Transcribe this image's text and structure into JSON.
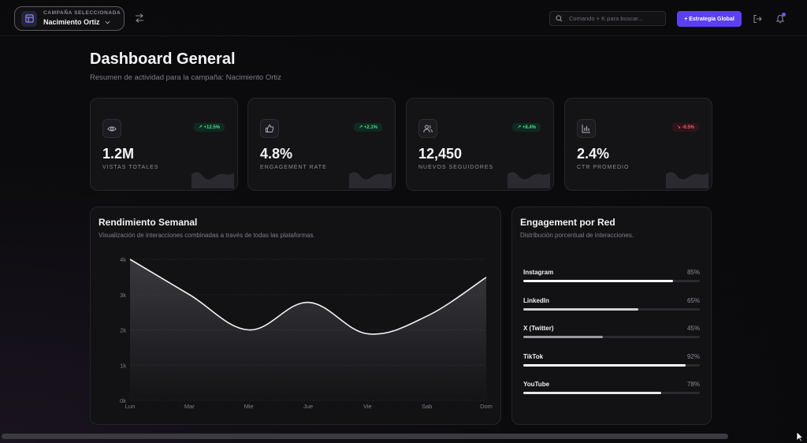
{
  "header": {
    "campaign_label": "CAMPAÑA SELECCIONADA",
    "campaign_name": "Nacimiento Ortiz",
    "search_placeholder": "Comando + K para buscar...",
    "strategy_button": "+ Estrategia Global"
  },
  "page": {
    "title": "Dashboard General",
    "subtitle": "Resumen de actividad para la campaña: Nacimiento Ortiz"
  },
  "stats": [
    {
      "icon": "eye-icon",
      "value": "1.2M",
      "label": "VISTAS TOTALES",
      "badge": "↗ +12.5%",
      "trend": "up"
    },
    {
      "icon": "thumbs-up-icon",
      "value": "4.8%",
      "label": "ENGAGEMENT RATE",
      "badge": "↗ +2.1%",
      "trend": "up"
    },
    {
      "icon": "users-icon",
      "value": "12,450",
      "label": "NUEVOS SEGUIDORES",
      "badge": "↗ +8.4%",
      "trend": "up"
    },
    {
      "icon": "bar-chart-icon",
      "value": "2.4%",
      "label": "CTR PROMEDIO",
      "badge": "↘ -0.5%",
      "trend": "down"
    }
  ],
  "weekly": {
    "title": "Rendimiento Semanal",
    "subtitle": "Visualización de interacciones combinadas a través de todas las plataformas."
  },
  "chart_data": {
    "type": "area",
    "categories": [
      "Lun",
      "Mar",
      "Mie",
      "Jue",
      "Vie",
      "Sab",
      "Dom"
    ],
    "values": [
      4000,
      3000,
      2000,
      2780,
      1890,
      2390,
      3490
    ],
    "yticks": [
      "0k",
      "1k",
      "2k",
      "3k",
      "4k"
    ],
    "ylim": [
      0,
      4000
    ],
    "grid": true
  },
  "engagement": {
    "title": "Engagement por Red",
    "subtitle": "Distribución porcentual de interacciones.",
    "networks": [
      {
        "name": "Instagram",
        "pct_label": "85%",
        "value": 85,
        "color": "#ffffff"
      },
      {
        "name": "LinkedIn",
        "pct_label": "65%",
        "value": 65,
        "color": "#cfcfd4"
      },
      {
        "name": "X (Twitter)",
        "pct_label": "45%",
        "value": 45,
        "color": "#9a9aa0"
      },
      {
        "name": "TikTok",
        "pct_label": "92%",
        "value": 92,
        "color": "#ffffff"
      },
      {
        "name": "YouTube",
        "pct_label": "78%",
        "value": 78,
        "color": "#e6e6ea"
      }
    ]
  }
}
